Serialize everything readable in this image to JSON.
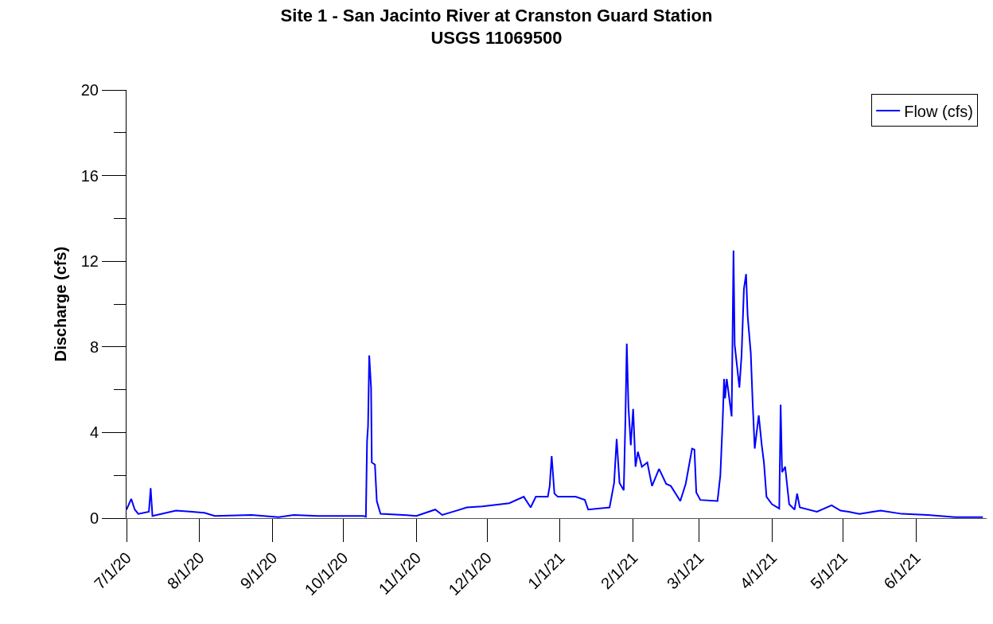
{
  "chart_data": {
    "type": "line",
    "title": "Site 1 - San Jacinto River at Cranston Guard Station\nUSGS 11069500",
    "ylabel": "Discharge (cfs)",
    "x": [
      "2020-07-01",
      "2020-07-03",
      "2020-07-04T12:00",
      "2020-07-06",
      "2020-07-10T12:00",
      "2020-07-11T06:00",
      "2020-07-12",
      "2020-07-22",
      "2020-07-29",
      "2020-08-03",
      "2020-08-07T12:00",
      "2020-08-23",
      "2020-09-03T12:00",
      "2020-09-10",
      "2020-09-20",
      "2020-10-09T12:00",
      "2020-10-10T14:00",
      "2020-10-11T02:00",
      "2020-10-11T12:00",
      "2020-10-12",
      "2020-10-12T19:00",
      "2020-10-13T02:00",
      "2020-10-14T10:00",
      "2020-10-15T05:00",
      "2020-10-16T19:00",
      "2020-10-26T10:00",
      "2020-11-01",
      "2020-11-09",
      "2020-11-12",
      "2020-11-18",
      "2020-11-22T10:00",
      "2020-11-29",
      "2020-12-10T10:00",
      "2020-12-16T14:00",
      "2020-12-19T12:00",
      "2020-12-21T17:00",
      "2020-12-26T19:00",
      "2020-12-27T14:00",
      "2020-12-28T10:00",
      "2020-12-29T14:00",
      "2020-12-31",
      "2021-01-07T14:00",
      "2021-01-11T12:00",
      "2021-01-12T22:00",
      "2021-01-22",
      "2021-01-23T22:00",
      "2021-01-25",
      "2021-01-26T05:00",
      "2021-01-28",
      "2021-01-28T17:00",
      "2021-01-29T07:00",
      "2021-01-30",
      "2021-01-31",
      "2021-02-01",
      "2021-02-02",
      "2021-02-03",
      "2021-02-04T17:00",
      "2021-02-07",
      "2021-02-09",
      "2021-02-12",
      "2021-02-15",
      "2021-02-17",
      "2021-02-21",
      "2021-02-23T07:00",
      "2021-02-26",
      "2021-02-27",
      "2021-02-27T19:00",
      "2021-03-01T12:00",
      "2021-03-08T19:00",
      "2021-03-10",
      "2021-03-11",
      "2021-03-11T14:00",
      "2021-03-12",
      "2021-03-12T17:00",
      "2021-03-14T19:00",
      "2021-03-15T14:00",
      "2021-03-16T02:00",
      "2021-03-18T02:00",
      "2021-03-19",
      "2021-03-20",
      "2021-03-20T22:00",
      "2021-03-21T14:00",
      "2021-03-22T22:00",
      "2021-03-23T17:00",
      "2021-03-24T14:00",
      "2021-03-26T07:00",
      "2021-03-27T14:00",
      "2021-03-28T12:00",
      "2021-03-29T14:00",
      "2021-03-31T22:00",
      "2021-04-04",
      "2021-04-04T14:00",
      "2021-04-05T05:00",
      "2021-04-06T12:00",
      "2021-04-08T05:00",
      "2021-04-10T12:00",
      "2021-04-11T14:00",
      "2021-04-12T17:00",
      "2021-04-20",
      "2021-04-26T05:00",
      "2021-04-30",
      "2021-05-03T12:00",
      "2021-05-08",
      "2021-05-13T17:00",
      "2021-05-17",
      "2021-05-26",
      "2021-06-06",
      "2021-06-17T14:00",
      "2021-06-29T10:00"
    ],
    "series": [
      {
        "name": "Flow (cfs)",
        "color": "#0000ff",
        "values": [
          0.4,
          0.9,
          0.4,
          0.2,
          0.3,
          1.4,
          0.1,
          0.35,
          0.3,
          0.25,
          0.1,
          0.15,
          0.05,
          0.15,
          0.1,
          0.1,
          0.07,
          3.6,
          4.3,
          7.6,
          6.1,
          2.6,
          2.5,
          0.8,
          0.2,
          0.15,
          0.1,
          0.4,
          0.15,
          0.35,
          0.5,
          0.55,
          0.7,
          1.0,
          0.5,
          1.0,
          1.0,
          1.5,
          2.9,
          1.15,
          1.0,
          1.0,
          0.85,
          0.4,
          0.5,
          1.65,
          3.7,
          1.65,
          1.3,
          4.6,
          8.15,
          5.2,
          3.4,
          5.1,
          2.4,
          3.1,
          2.4,
          2.6,
          1.5,
          2.3,
          1.6,
          1.5,
          0.8,
          1.6,
          3.25,
          3.2,
          1.2,
          0.85,
          0.8,
          2.0,
          4.6,
          6.5,
          5.6,
          6.5,
          4.75,
          12.5,
          8.1,
          6.1,
          7.6,
          10.7,
          11.4,
          9.45,
          7.7,
          5.4,
          3.25,
          4.8,
          3.4,
          2.6,
          1.0,
          0.65,
          0.45,
          5.3,
          2.15,
          2.4,
          0.65,
          0.4,
          1.15,
          0.5,
          0.3,
          0.6,
          0.35,
          0.3,
          0.2,
          0.3,
          0.35,
          0.2,
          0.15,
          0.05,
          0.05
        ]
      }
    ],
    "xlim": [
      "2020-07-01",
      "2021-07-01"
    ],
    "xticks": [
      {
        "value": "2020-07-01",
        "label": "7/1/20"
      },
      {
        "value": "2020-08-01",
        "label": "8/1/20"
      },
      {
        "value": "2020-09-01",
        "label": "9/1/20"
      },
      {
        "value": "2020-10-01",
        "label": "10/1/20"
      },
      {
        "value": "2020-11-01",
        "label": "11/1/20"
      },
      {
        "value": "2020-12-01",
        "label": "12/1/20"
      },
      {
        "value": "2021-01-01",
        "label": "1/1/21"
      },
      {
        "value": "2021-02-01",
        "label": "2/1/21"
      },
      {
        "value": "2021-03-01",
        "label": "3/1/21"
      },
      {
        "value": "2021-04-01",
        "label": "4/1/21"
      },
      {
        "value": "2021-05-01",
        "label": "5/1/21"
      },
      {
        "value": "2021-06-01",
        "label": "6/1/21"
      }
    ],
    "ylim": [
      0,
      20
    ],
    "yticks": [
      0,
      {
        "value": 2,
        "label": null
      },
      4,
      {
        "value": 6,
        "label": null
      },
      8,
      {
        "value": 10,
        "label": null
      },
      12,
      {
        "value": 14,
        "label": null
      },
      16,
      {
        "value": 18,
        "label": null
      },
      20
    ],
    "grid": false,
    "legend": "top right",
    "marker": "none",
    "line_style": "solid"
  }
}
